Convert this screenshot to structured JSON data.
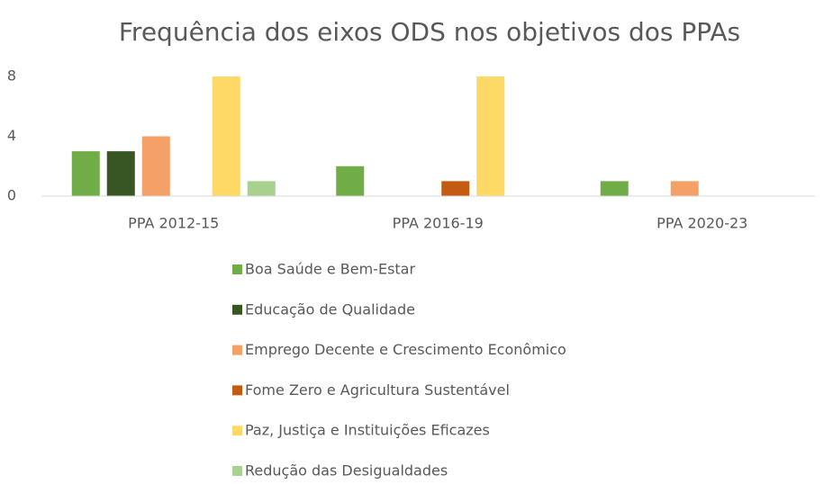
{
  "chart_data": {
    "type": "bar",
    "title": "Frequência dos eixos ODS nos objetivos dos PPAs",
    "categories": [
      "PPA 2012-15",
      "PPA 2016-19",
      "PPA 2020-23"
    ],
    "series": [
      {
        "name": "Boa Saúde e Bem-Estar",
        "color": "#70ad47",
        "values": [
          3,
          2,
          1
        ]
      },
      {
        "name": "Educação de Qualidade",
        "color": "#375623",
        "values": [
          3,
          0,
          0
        ]
      },
      {
        "name": "Emprego Decente e Crescimento Econômico",
        "color": "#f4a066",
        "values": [
          4,
          0,
          1
        ]
      },
      {
        "name": "Fome Zero e Agricultura Sustentável",
        "color": "#c55a11",
        "values": [
          0,
          1,
          0
        ]
      },
      {
        "name": "Paz, Justiça e Instituições Eficazes",
        "color": "#ffd966",
        "values": [
          8,
          8,
          0
        ]
      },
      {
        "name": "Redução das Desigualdades",
        "color": "#a9d18e",
        "values": [
          1,
          0,
          0
        ]
      }
    ],
    "ylim": [
      0,
      8
    ],
    "yticks": [
      0,
      4,
      8
    ],
    "grid": false,
    "legend": "bottom"
  }
}
